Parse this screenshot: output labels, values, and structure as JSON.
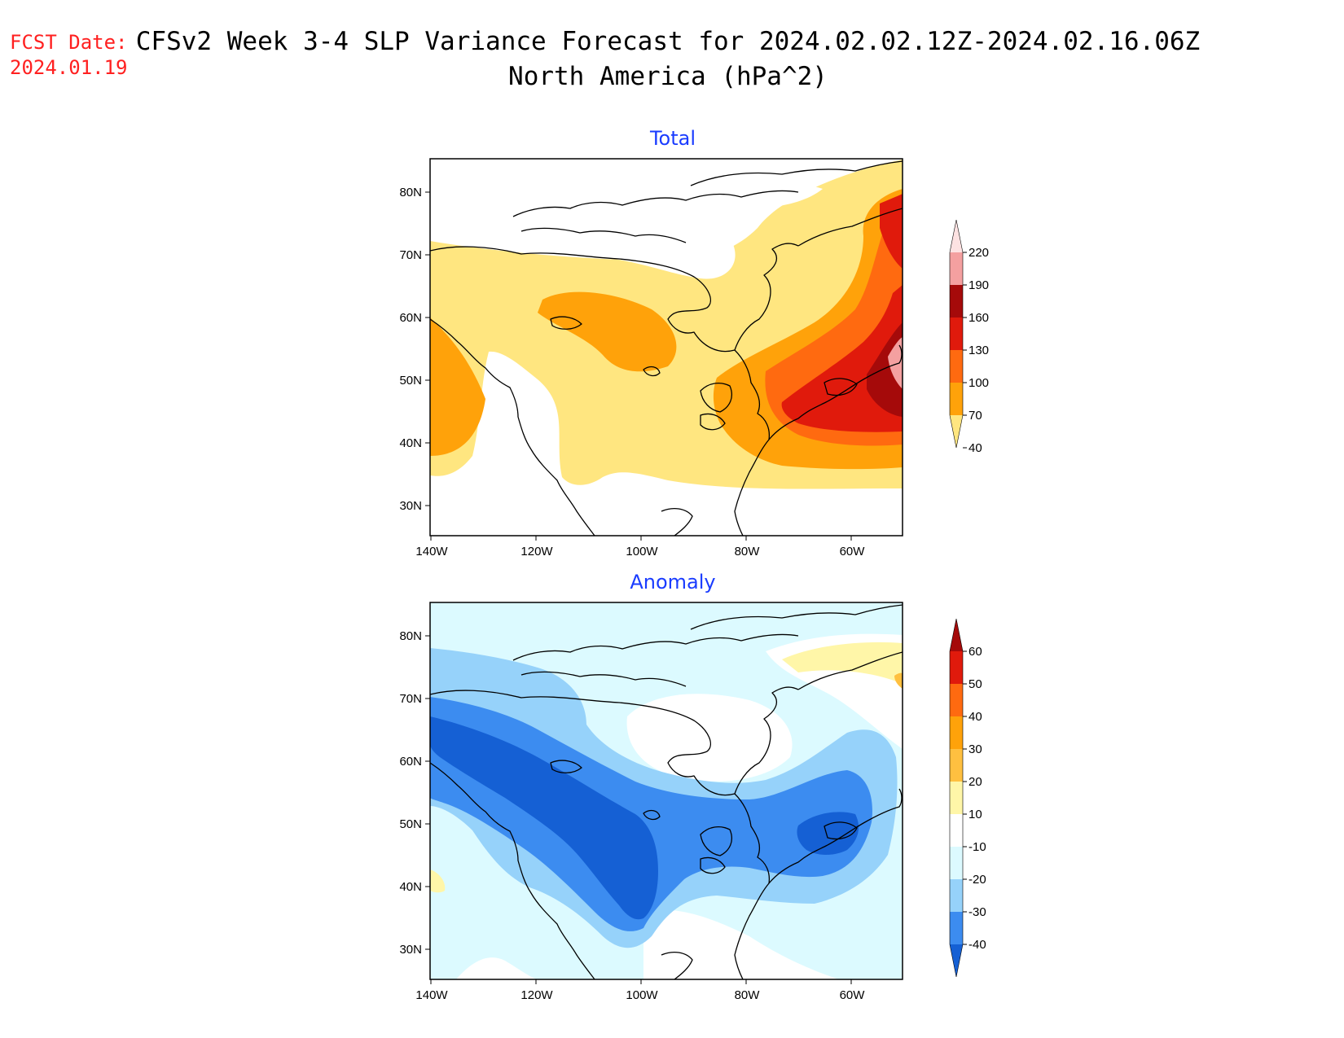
{
  "header": {
    "fcst_label": "FCST Date:",
    "fcst_date": "2024.01.19",
    "title_line1": "CFSv2 Week 3-4 SLP Variance Forecast for 2024.02.02.12Z-2024.02.16.06Z",
    "title_line2": "North America (hPa^2)"
  },
  "map_axes": {
    "lon_ticks": [
      "140W",
      "120W",
      "100W",
      "80W",
      "60W"
    ],
    "lat_ticks": [
      "30N",
      "40N",
      "50N",
      "60N",
      "70N",
      "80N"
    ],
    "lon_range_deg": [
      -140,
      -50
    ],
    "lat_range_deg": [
      25,
      85
    ]
  },
  "panels": [
    {
      "id": "total",
      "title": "Total",
      "colorbar_labels": [
        "220",
        "190",
        "160",
        "130",
        "100",
        "70",
        "40"
      ],
      "colorbar_colors": [
        "#fde2e2",
        "#f4a0a0",
        "#a50a0a",
        "#e01a0c",
        "#ff6a10",
        "#ffa20a",
        "#ffe680"
      ]
    },
    {
      "id": "anomaly",
      "title": "Anomaly",
      "colorbar_labels": [
        "60",
        "50",
        "40",
        "30",
        "20",
        "10",
        "-10",
        "-20",
        "-30",
        "-40"
      ],
      "colorbar_colors": [
        "#a50a0a",
        "#e01a0c",
        "#ff6a10",
        "#ffa20a",
        "#ffc040",
        "#fff6a8",
        "#ffffff",
        "#dcfaff",
        "#96d2fa",
        "#3c8cf0",
        "#1560d4"
      ]
    }
  ]
}
